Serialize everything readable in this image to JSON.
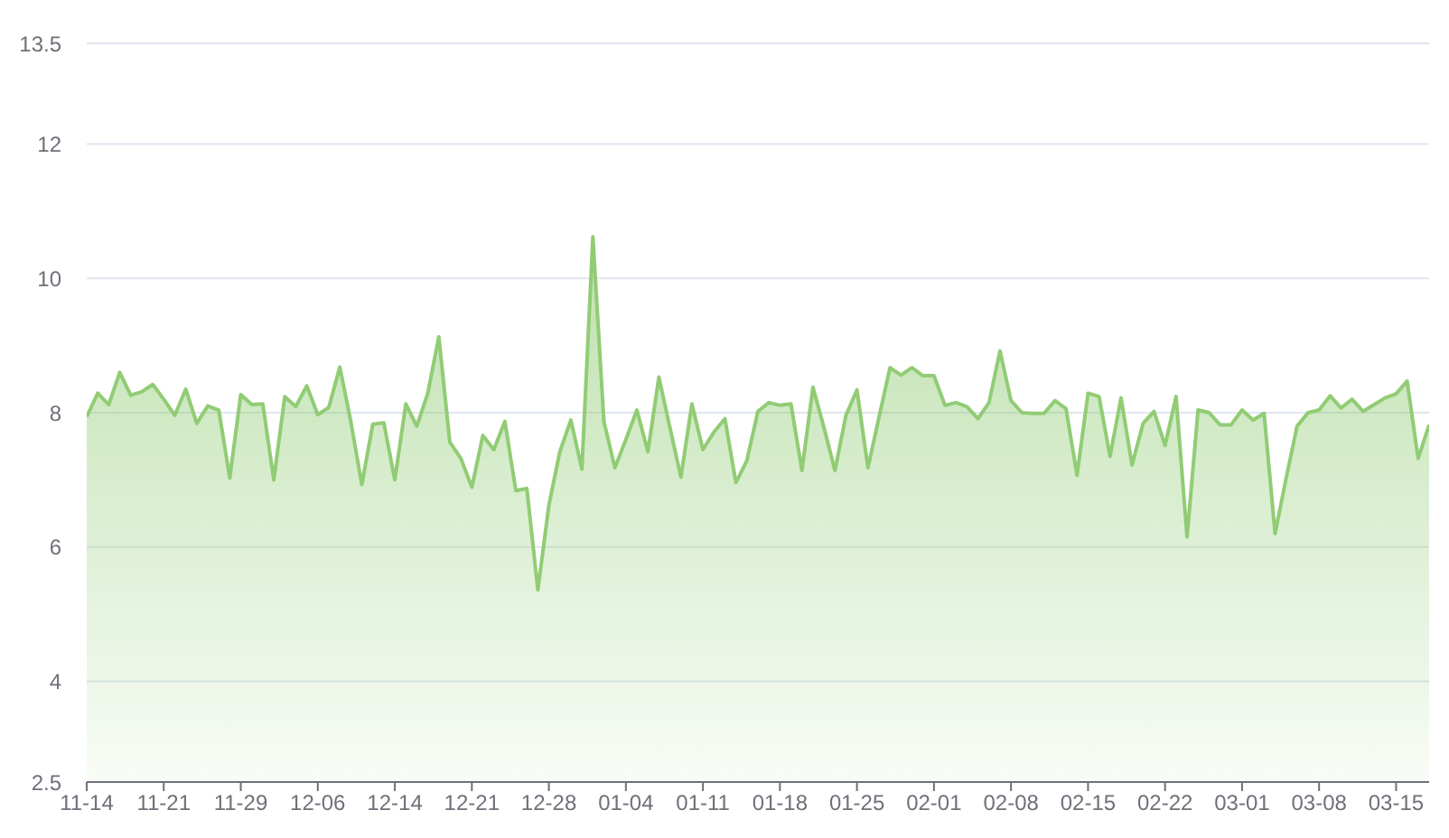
{
  "chart_data": {
    "type": "area",
    "categories": [
      "11-14",
      null,
      null,
      null,
      null,
      null,
      null,
      "11-21",
      null,
      null,
      null,
      null,
      null,
      null,
      "11-29",
      null,
      null,
      null,
      null,
      null,
      null,
      "12-06",
      null,
      null,
      null,
      null,
      null,
      null,
      "12-14",
      null,
      null,
      null,
      null,
      null,
      null,
      "12-21",
      null,
      null,
      null,
      null,
      null,
      null,
      "12-28",
      null,
      null,
      null,
      null,
      null,
      null,
      "01-04",
      null,
      null,
      null,
      null,
      null,
      null,
      "01-11",
      null,
      null,
      null,
      null,
      null,
      null,
      "01-18",
      null,
      null,
      null,
      null,
      null,
      null,
      "01-25",
      null,
      null,
      null,
      null,
      null,
      null,
      "02-01",
      null,
      null,
      null,
      null,
      null,
      null,
      "02-08",
      null,
      null,
      null,
      null,
      null,
      null,
      "02-15",
      null,
      null,
      null,
      null,
      null,
      null,
      "02-22",
      null,
      null,
      null,
      null,
      null,
      null,
      "03-01",
      null,
      null,
      null,
      null,
      null,
      null,
      "03-08",
      null,
      null,
      null,
      null,
      null,
      null,
      "03-15",
      null,
      null,
      null
    ],
    "values": [
      7.94,
      8.29,
      8.12,
      8.6,
      8.26,
      8.31,
      8.42,
      8.2,
      7.96,
      8.35,
      7.84,
      8.1,
      8.04,
      7.03,
      8.27,
      8.12,
      8.13,
      7.0,
      8.24,
      8.09,
      8.4,
      7.97,
      8.08,
      8.68,
      7.87,
      6.93,
      7.83,
      7.85,
      7.0,
      8.13,
      7.8,
      8.29,
      9.13,
      7.56,
      7.32,
      6.89,
      7.66,
      7.45,
      7.87,
      6.84,
      6.87,
      5.36,
      6.62,
      7.42,
      7.89,
      7.16,
      10.62,
      7.87,
      7.18,
      7.6,
      8.04,
      7.42,
      8.53,
      7.78,
      7.04,
      8.13,
      7.45,
      7.71,
      7.91,
      6.96,
      7.29,
      8.02,
      8.15,
      8.11,
      8.13,
      7.14,
      8.38,
      7.78,
      7.14,
      7.96,
      8.34,
      7.18,
      7.93,
      8.67,
      8.56,
      8.67,
      8.55,
      8.55,
      8.11,
      8.15,
      8.09,
      7.91,
      8.15,
      8.92,
      8.18,
      8.0,
      7.99,
      7.99,
      8.18,
      8.06,
      7.07,
      8.29,
      8.24,
      7.35,
      8.22,
      7.22,
      7.84,
      8.02,
      7.51,
      8.24,
      6.15,
      8.04,
      8.0,
      7.82,
      7.82,
      8.04,
      7.89,
      7.99,
      6.2,
      7.02,
      7.8,
      8.0,
      8.04,
      8.25,
      8.07,
      8.2,
      8.02,
      8.12,
      8.22,
      8.28,
      8.47,
      7.32,
      7.82
    ],
    "color": "#91cc75",
    "ylim": [
      2.5,
      13.5
    ],
    "yticks": [
      2.5,
      4,
      6,
      8,
      10,
      12,
      13.5
    ],
    "grid": "y"
  }
}
